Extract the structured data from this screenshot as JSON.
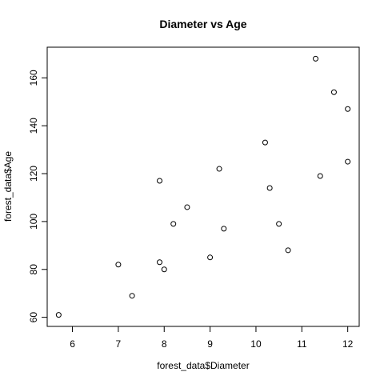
{
  "chart_data": {
    "type": "scatter",
    "title": "Diameter vs Age",
    "xlabel": "forest_data$Diameter",
    "ylabel": "forest_data$Age",
    "xlim": [
      5.45,
      12.25
    ],
    "ylim": [
      56.2,
      172.8
    ],
    "xticks": [
      6,
      7,
      8,
      9,
      10,
      11,
      12
    ],
    "yticks": [
      60,
      80,
      100,
      120,
      140,
      160
    ],
    "grid": false,
    "points": [
      {
        "x": 5.7,
        "y": 61
      },
      {
        "x": 7.0,
        "y": 82
      },
      {
        "x": 7.3,
        "y": 69
      },
      {
        "x": 7.9,
        "y": 117
      },
      {
        "x": 7.9,
        "y": 83
      },
      {
        "x": 8.0,
        "y": 80
      },
      {
        "x": 8.2,
        "y": 99
      },
      {
        "x": 8.5,
        "y": 106
      },
      {
        "x": 9.0,
        "y": 85
      },
      {
        "x": 9.2,
        "y": 122
      },
      {
        "x": 9.3,
        "y": 97
      },
      {
        "x": 10.2,
        "y": 133
      },
      {
        "x": 10.3,
        "y": 114
      },
      {
        "x": 10.5,
        "y": 99
      },
      {
        "x": 10.7,
        "y": 88
      },
      {
        "x": 11.3,
        "y": 168
      },
      {
        "x": 11.4,
        "y": 119
      },
      {
        "x": 11.7,
        "y": 154
      },
      {
        "x": 12.0,
        "y": 147
      },
      {
        "x": 12.0,
        "y": 125
      }
    ]
  }
}
